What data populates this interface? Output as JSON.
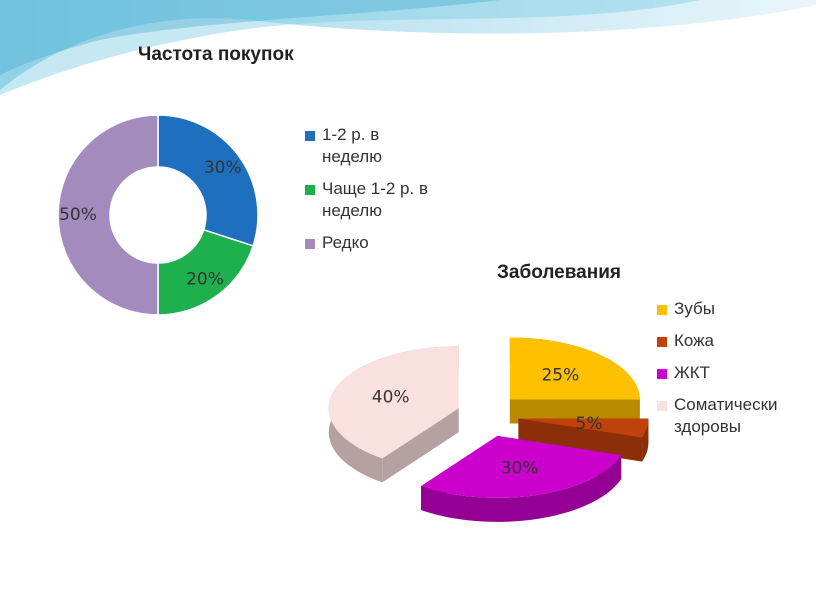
{
  "chart_data": [
    {
      "type": "donut",
      "title": "Частота покупок",
      "categories": [
        "1-2 р. в неделю",
        "Чаще 1-2 р. в неделю",
        "Редко"
      ],
      "values": [
        30,
        20,
        50
      ],
      "value_labels": [
        "30%",
        "20%",
        "50%"
      ],
      "colors": [
        "#1f6fbf",
        "#1fb04e",
        "#a48bbd"
      ]
    },
    {
      "type": "pie3d",
      "title": "Заболевания",
      "categories": [
        "Зубы",
        "Кожа",
        "ЖКТ",
        "Соматически здоровы"
      ],
      "values": [
        25,
        5,
        30,
        40
      ],
      "value_labels": [
        "25%",
        "5%",
        "30%",
        "40%"
      ],
      "colors": [
        "#ffc000",
        "#c0410a",
        "#cc00cc",
        "#fbe0e0"
      ]
    }
  ]
}
